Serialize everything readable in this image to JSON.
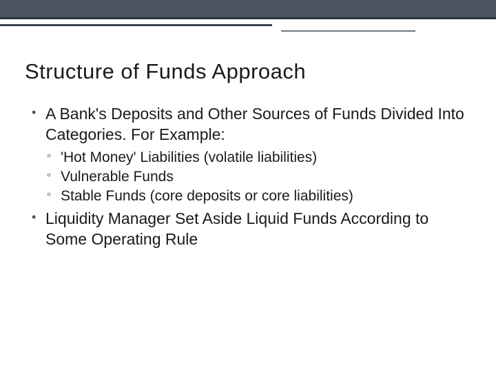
{
  "slide": {
    "title": "Structure of Funds Approach",
    "bullets": [
      {
        "text": "A Bank's Deposits and Other Sources of Funds Divided Into Categories.  For Example:",
        "sub": [
          "'Hot Money' Liabilities (volatile liabilities)",
          "Vulnerable Funds",
          "Stable Funds (core deposits or core liabilities)"
        ]
      },
      {
        "text": "Liquidity Manager Set Aside Liquid Funds According to Some Operating Rule",
        "sub": []
      }
    ]
  },
  "style": {
    "top_bar_color": "#4a5560",
    "accent_color": "#3a424a",
    "background": "#ffffff",
    "title_fontsize": 31,
    "bullet_fontsize": 23,
    "sub_fontsize": 21,
    "text_color": "#1a1a1a"
  }
}
